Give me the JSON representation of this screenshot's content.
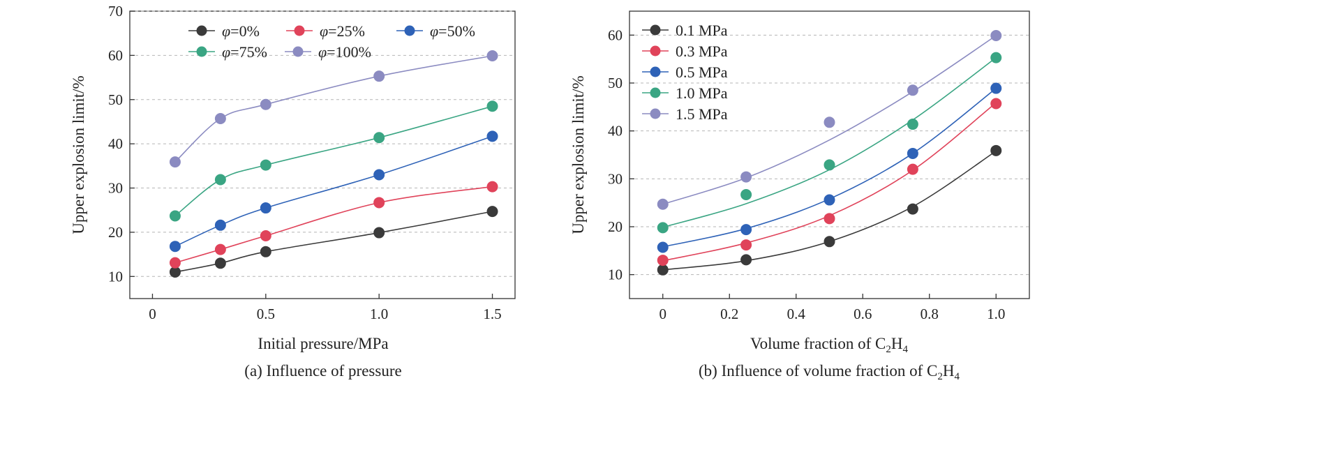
{
  "chart_data": [
    {
      "type": "line",
      "caption": "(a) Influence of pressure",
      "xlabel": "Initial pressure/MPa",
      "ylabel": "Upper explosion limit/%",
      "xlim": [
        -0.1,
        1.6
      ],
      "ylim": [
        5,
        70
      ],
      "xticks": [
        "0",
        "0.5",
        "1.0",
        "1.5"
      ],
      "yticks": [
        "10",
        "20",
        "30",
        "40",
        "50",
        "60",
        "70"
      ],
      "x": [
        0.1,
        0.3,
        0.5,
        1.0,
        1.5
      ],
      "grid": "horizontal dashed",
      "legend_position": "top",
      "series": [
        {
          "symbol": "φ",
          "name": "=0%",
          "color": "#3a3a3a",
          "values": [
            11.0,
            13.0,
            15.6,
            19.9,
            24.7
          ]
        },
        {
          "symbol": "φ",
          "name": "=25%",
          "color": "#e0435a",
          "values": [
            13.1,
            16.1,
            19.2,
            26.7,
            30.3
          ]
        },
        {
          "symbol": "φ",
          "name": "=50%",
          "color": "#2e62b7",
          "values": [
            16.8,
            21.6,
            25.5,
            33.0,
            41.7
          ]
        },
        {
          "symbol": "φ",
          "name": "=75%",
          "color": "#3aa583",
          "values": [
            23.7,
            31.9,
            35.2,
            41.4,
            48.5
          ]
        },
        {
          "symbol": "φ",
          "name": "=100%",
          "color": "#8b8bc1",
          "values": [
            35.9,
            45.7,
            48.9,
            55.3,
            59.9
          ]
        }
      ]
    },
    {
      "type": "line",
      "caption_main": "(b) Influence of volume fraction of C",
      "caption_sub1": "2",
      "caption_mid": "H",
      "caption_sub2": "4",
      "xlabel_main": "Volume fraction of C",
      "xlabel_sub1": "2",
      "xlabel_mid": "H",
      "xlabel_sub2": "4",
      "ylabel": "Upper explosion limit/%",
      "xlim": [
        -0.1,
        1.1
      ],
      "ylim": [
        5,
        65
      ],
      "xticks": [
        "0",
        "0.2",
        "0.4",
        "0.6",
        "0.8",
        "1.0"
      ],
      "yticks": [
        "10",
        "20",
        "30",
        "40",
        "50",
        "60"
      ],
      "x": [
        0,
        0.25,
        0.5,
        0.75,
        1.0
      ],
      "grid": "horizontal dashed",
      "legend_position": "top-left",
      "series": [
        {
          "name": "0.1 MPa",
          "color": "#3a3a3a",
          "values": [
            11.0,
            13.1,
            16.9,
            23.7,
            35.9
          ],
          "fit": [
            11.0,
            12.9,
            16.9,
            24.2,
            35.8
          ]
        },
        {
          "name": "0.3 MPa",
          "color": "#e0435a",
          "values": [
            13.0,
            16.2,
            21.7,
            32.0,
            45.7
          ],
          "fit": [
            12.9,
            16.6,
            22.3,
            31.8,
            45.9
          ]
        },
        {
          "name": "0.5 MPa",
          "color": "#2e62b7",
          "values": [
            15.7,
            19.4,
            25.6,
            35.3,
            48.9
          ],
          "fit": [
            15.8,
            19.6,
            25.8,
            35.3,
            48.9
          ]
        },
        {
          "name": "1.0 MPa",
          "color": "#3aa583",
          "values": [
            19.8,
            26.7,
            32.9,
            41.4,
            55.3
          ],
          "fit": [
            19.9,
            24.8,
            31.9,
            42.3,
            55.3
          ]
        },
        {
          "name": "1.5 MPa",
          "color": "#8b8bc1",
          "values": [
            24.7,
            30.4,
            41.8,
            48.5,
            59.9
          ],
          "fit": [
            24.7,
            30.2,
            38.1,
            48.2,
            59.9
          ]
        }
      ]
    }
  ]
}
